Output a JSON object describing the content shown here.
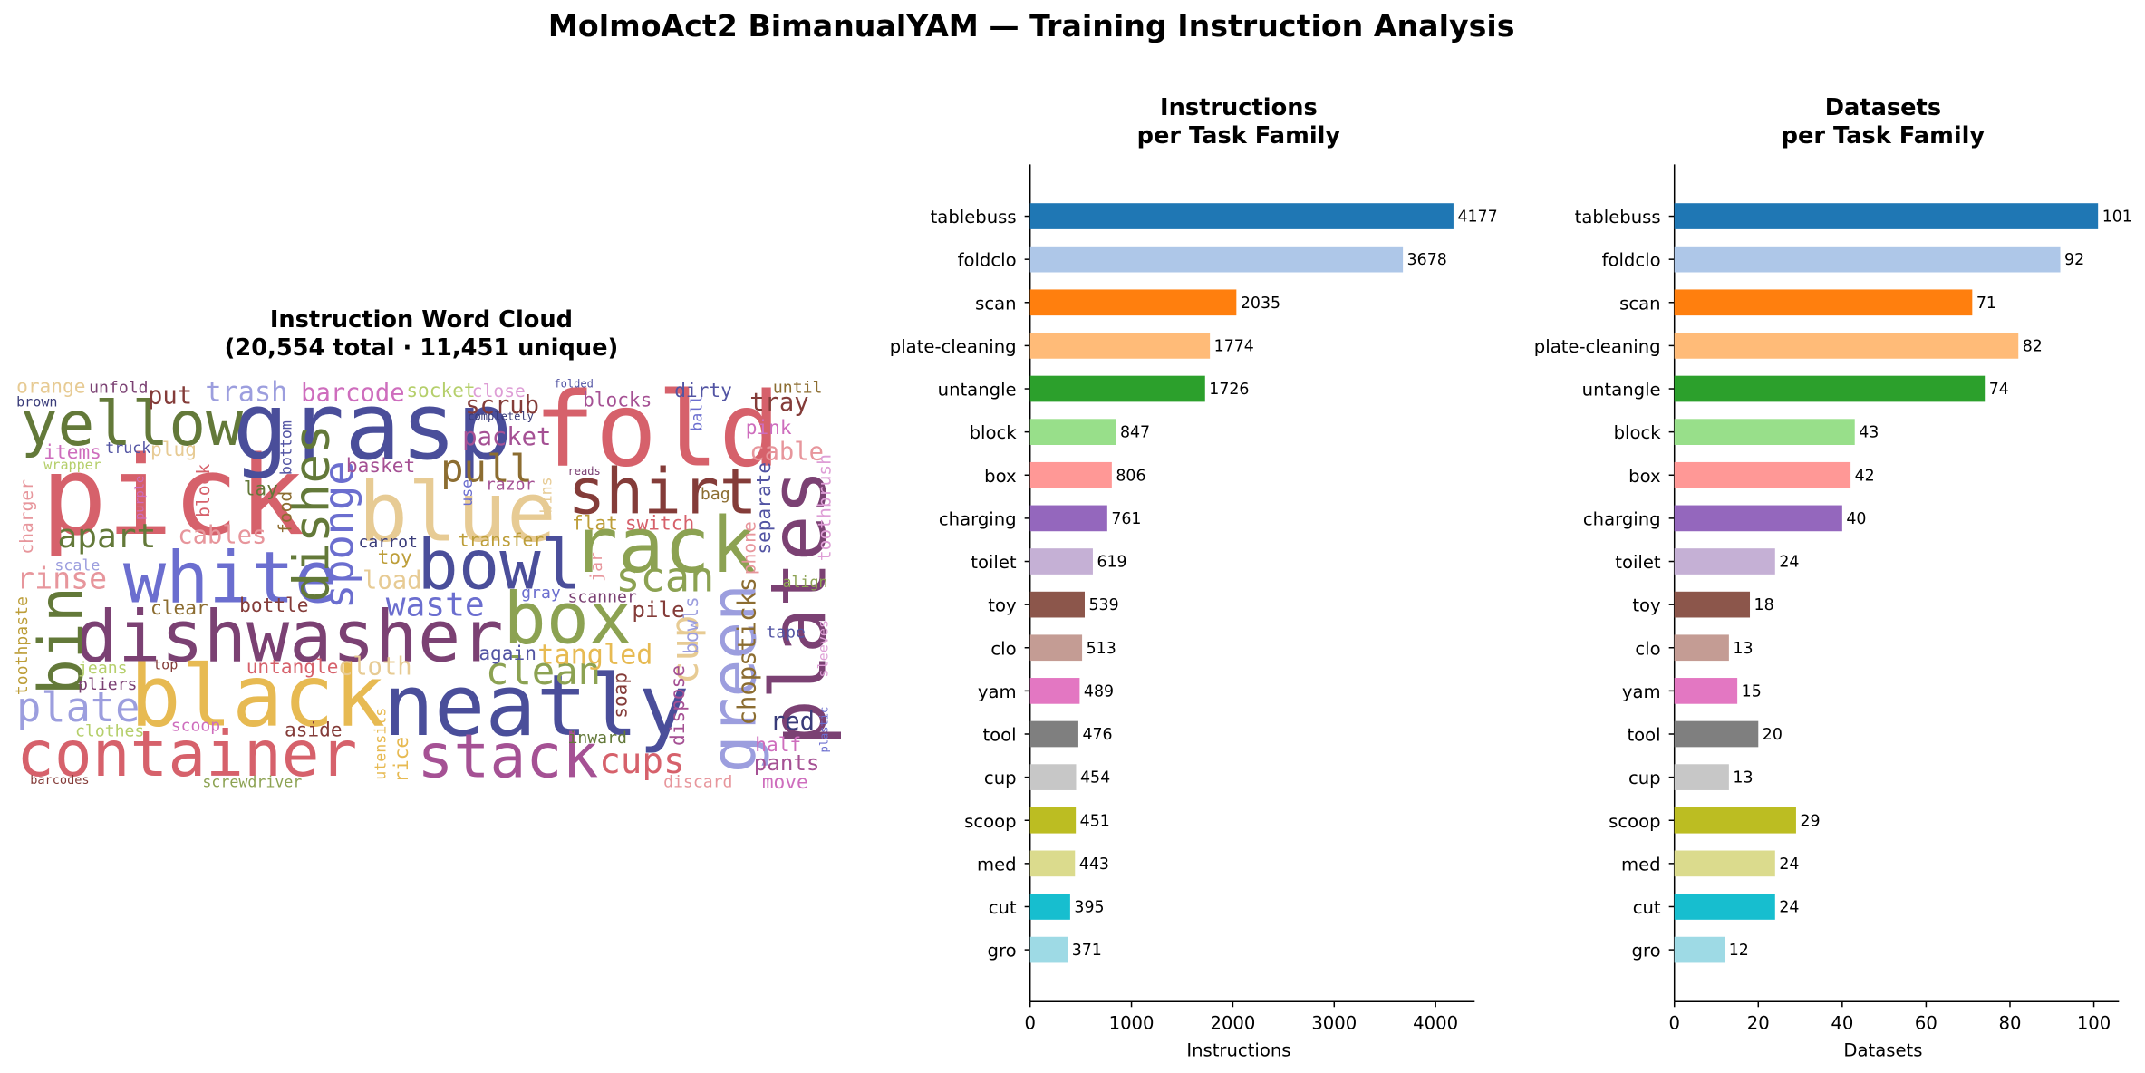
{
  "title": "MolmoAct2 BimanualYAM — Training Instruction Analysis",
  "chart_data": [
    {
      "type": "wordcloud",
      "title": "Instruction Word Cloud\n(20,554 total · 11,451 unique)",
      "words": [
        "pick",
        "fold",
        "grasp",
        "yellow",
        "blue",
        "white",
        "dishwasher",
        "black",
        "container",
        "neatly",
        "stack",
        "box",
        "bowl",
        "rack",
        "shirt",
        "plates",
        "green",
        "bin",
        "dishes",
        "sponge",
        "cup",
        "chopsticks",
        "scan",
        "clean",
        "waste",
        "pull",
        "plate",
        "apart",
        "rinse",
        "trash",
        "barcode",
        "socket",
        "close",
        "scrub",
        "packet",
        "put",
        "unfold",
        "orange",
        "brown",
        "cables",
        "cable",
        "tray",
        "until",
        "dirty",
        "blocks",
        "pink",
        "basket",
        "load",
        "toy",
        "carrot",
        "flat",
        "switch",
        "transfer",
        "razor",
        "tangled",
        "cloth",
        "untangle",
        "bottle",
        "clear",
        "jeans",
        "pliers",
        "clothes",
        "scoop",
        "aside",
        "top",
        "again",
        "gray",
        "scanner",
        "pile",
        "inward",
        "cups",
        "red",
        "half",
        "pants",
        "move",
        "discard",
        "screwdriver",
        "barcodes",
        "tape",
        "align",
        "items",
        "truck",
        "plug",
        "wrapper",
        "scale",
        "lay",
        "bag",
        "reads",
        "completely",
        "folded",
        "soap",
        "dispose",
        "bowls",
        "separate",
        "phone",
        "toothbrush",
        "charger",
        "block",
        "food",
        "bottom",
        "toothpaste",
        "rice",
        "utensils",
        "jar",
        "use",
        "ball",
        "bins",
        "sleeves",
        "plastic",
        "purple"
      ]
    },
    {
      "type": "barh",
      "title": "Instructions\nper Task Family",
      "xlabel": "Instructions",
      "categories": [
        "tablebuss",
        "foldclo",
        "scan",
        "plate-cleaning",
        "untangle",
        "block",
        "box",
        "charging",
        "toilet",
        "toy",
        "clo",
        "yam",
        "tool",
        "cup",
        "scoop",
        "med",
        "cut",
        "gro"
      ],
      "values": [
        4177,
        3678,
        2035,
        1774,
        1726,
        847,
        806,
        761,
        619,
        539,
        513,
        489,
        476,
        454,
        451,
        443,
        395,
        371
      ],
      "colors": [
        "#1f77b4",
        "#aec7e8",
        "#ff7f0e",
        "#ffbb78",
        "#2ca02c",
        "#98df8a",
        "#ff9896",
        "#9467bd",
        "#c5b0d5",
        "#8c564b",
        "#c49c94",
        "#e377c2",
        "#7f7f7f",
        "#c7c7c7",
        "#bcbd22",
        "#dbdb8d",
        "#17becf",
        "#9edae5"
      ],
      "xlim": [
        0,
        4386
      ],
      "xticks": [
        0,
        1000,
        2000,
        3000,
        4000
      ],
      "grid": false
    },
    {
      "type": "barh",
      "title": "Datasets\nper Task Family",
      "xlabel": "Datasets",
      "categories": [
        "tablebuss",
        "foldclo",
        "scan",
        "plate-cleaning",
        "untangle",
        "block",
        "box",
        "charging",
        "toilet",
        "toy",
        "clo",
        "yam",
        "tool",
        "cup",
        "scoop",
        "med",
        "cut",
        "gro"
      ],
      "values": [
        101,
        92,
        71,
        82,
        74,
        43,
        42,
        40,
        24,
        18,
        13,
        15,
        20,
        13,
        29,
        24,
        24,
        12
      ],
      "colors": [
        "#1f77b4",
        "#aec7e8",
        "#ff7f0e",
        "#ffbb78",
        "#2ca02c",
        "#98df8a",
        "#ff9896",
        "#9467bd",
        "#c5b0d5",
        "#8c564b",
        "#c49c94",
        "#e377c2",
        "#7f7f7f",
        "#c7c7c7",
        "#bcbd22",
        "#dbdb8d",
        "#17becf",
        "#9edae5"
      ],
      "xlim": [
        0,
        106
      ],
      "xticks": [
        0,
        20,
        40,
        60,
        80,
        100
      ],
      "grid": false
    }
  ]
}
